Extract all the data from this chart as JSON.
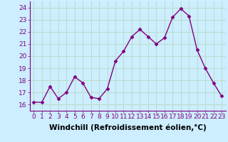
{
  "x": [
    0,
    1,
    2,
    3,
    4,
    5,
    6,
    7,
    8,
    9,
    10,
    11,
    12,
    13,
    14,
    15,
    16,
    17,
    18,
    19,
    20,
    21,
    22,
    23
  ],
  "y": [
    16.2,
    16.2,
    17.5,
    16.5,
    17.0,
    18.3,
    17.8,
    16.6,
    16.5,
    17.3,
    19.6,
    20.4,
    21.6,
    22.2,
    21.6,
    21.0,
    21.5,
    23.2,
    23.9,
    23.3,
    20.5,
    19.0,
    17.8,
    16.7
  ],
  "line_color": "#800080",
  "marker": "D",
  "marker_size": 2.5,
  "linewidth": 1.0,
  "bg_color": "#cceeff",
  "grid_color": "#bbddcc",
  "xlabel": "Windchill (Refroidissement éolien,°C)",
  "xlabel_fontsize": 7.5,
  "tick_fontsize": 6.5,
  "ylim": [
    15.5,
    24.5
  ],
  "xlim": [
    -0.5,
    23.5
  ],
  "yticks": [
    16,
    17,
    18,
    19,
    20,
    21,
    22,
    23,
    24
  ],
  "xticks": [
    0,
    1,
    2,
    3,
    4,
    5,
    6,
    7,
    8,
    9,
    10,
    11,
    12,
    13,
    14,
    15,
    16,
    17,
    18,
    19,
    20,
    21,
    22,
    23
  ]
}
